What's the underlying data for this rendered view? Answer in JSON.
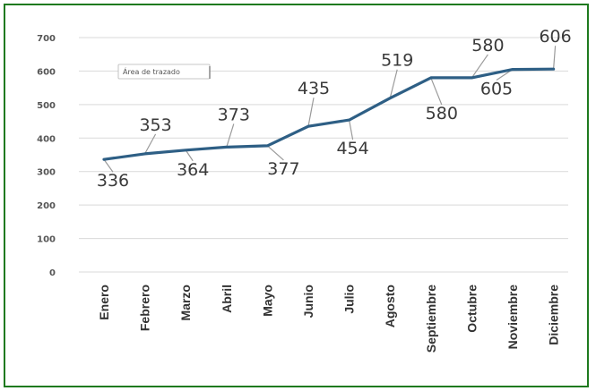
{
  "chart_data": {
    "type": "line",
    "categories": [
      "Enero",
      "Febrero",
      "Marzo",
      "Abril",
      "Mayo",
      "Junio",
      "Julio",
      "Agosto",
      "Septiembre",
      "Octubre",
      "Noviembre",
      "Diciembre"
    ],
    "series": [
      {
        "values": [
          336,
          353,
          364,
          373,
          377,
          435,
          454,
          519,
          580,
          580,
          605,
          606
        ]
      }
    ],
    "data_labels": [
      "336",
      "353",
      "364",
      "373",
      "377",
      "435",
      "454",
      "519",
      "580",
      "580",
      "605",
      "606"
    ],
    "yticks": [
      "0",
      "100",
      "200",
      "300",
      "400",
      "500",
      "600",
      "700"
    ],
    "ylim": [
      0,
      700
    ],
    "grid": true,
    "legend": "none",
    "title": "",
    "xlabel": "",
    "ylabel": "",
    "tooltip": "Área de trazado",
    "colors": {
      "line": "#2e5f85",
      "grid": "#d9d9d9",
      "frame": "#1f7a1f",
      "leader": "#9a9a9a"
    }
  }
}
